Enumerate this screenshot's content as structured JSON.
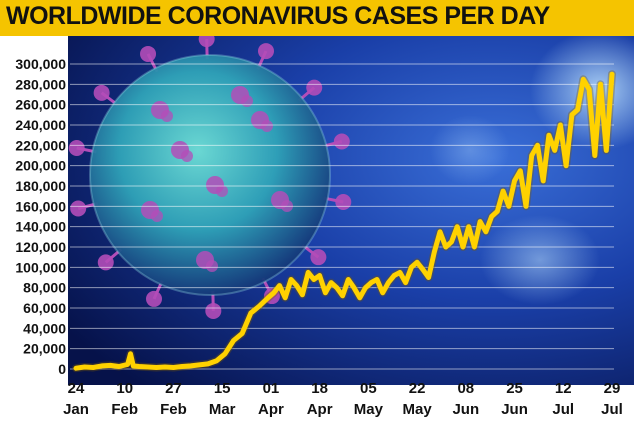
{
  "colors": {
    "title_bar": "#f5c400",
    "line": "#ffd200",
    "background_dark": "#06124a",
    "background_mid": "#1a3fa8",
    "virus_body": "#2fa3b8",
    "virus_spike": "#b34db8",
    "grid": "#ffffff"
  },
  "background_image": "coronavirus-particle-illustration",
  "chart_data": {
    "type": "line",
    "title": "WORLDWIDE CORONAVIRUS CASES PER DAY",
    "xlabel": "",
    "ylabel": "",
    "ylim": [
      0,
      300000
    ],
    "y_ticks": [
      {
        "value": 0,
        "label": "0"
      },
      {
        "value": 20000,
        "label": "20,000"
      },
      {
        "value": 40000,
        "label": "40,000"
      },
      {
        "value": 60000,
        "label": "60,000"
      },
      {
        "value": 80000,
        "label": "80,000"
      },
      {
        "value": 100000,
        "label": "100,000"
      },
      {
        "value": 120000,
        "label": "120,000"
      },
      {
        "value": 140000,
        "label": "140,000"
      },
      {
        "value": 160000,
        "label": "160,000"
      },
      {
        "value": 180000,
        "label": "180,000"
      },
      {
        "value": 200000,
        "label": "200,000"
      },
      {
        "value": 220000,
        "label": "220,000"
      },
      {
        "value": 240000,
        "label": "240,000"
      },
      {
        "value": 260000,
        "label": "260,000"
      },
      {
        "value": 280000,
        "label": "280,000"
      },
      {
        "value": 300000,
        "label": "300,000"
      }
    ],
    "x_ticks": [
      {
        "date": "2020-01-24",
        "day": "24",
        "month": "Jan"
      },
      {
        "date": "2020-02-10",
        "day": "10",
        "month": "Feb"
      },
      {
        "date": "2020-02-27",
        "day": "27",
        "month": "Feb"
      },
      {
        "date": "2020-03-15",
        "day": "15",
        "month": "Mar"
      },
      {
        "date": "2020-04-01",
        "day": "01",
        "month": "Apr"
      },
      {
        "date": "2020-04-18",
        "day": "18",
        "month": "Apr"
      },
      {
        "date": "2020-05-05",
        "day": "05",
        "month": "May"
      },
      {
        "date": "2020-05-22",
        "day": "22",
        "month": "May"
      },
      {
        "date": "2020-06-08",
        "day": "08",
        "month": "Jun"
      },
      {
        "date": "2020-06-25",
        "day": "25",
        "month": "Jun"
      },
      {
        "date": "2020-07-12",
        "day": "12",
        "month": "Jul"
      },
      {
        "date": "2020-07-29",
        "day": "29",
        "month": "Jul"
      }
    ],
    "grid": true,
    "series": [
      {
        "x": [
          "2020-01-24",
          "2020-01-27",
          "2020-01-30",
          "2020-02-02",
          "2020-02-05",
          "2020-02-08",
          "2020-02-11",
          "2020-02-12",
          "2020-02-13",
          "2020-02-15",
          "2020-02-18",
          "2020-02-21",
          "2020-02-24",
          "2020-02-27",
          "2020-03-01",
          "2020-03-04",
          "2020-03-07",
          "2020-03-10",
          "2020-03-13",
          "2020-03-16",
          "2020-03-19",
          "2020-03-22",
          "2020-03-25",
          "2020-03-28",
          "2020-03-31",
          "2020-04-02",
          "2020-04-04",
          "2020-04-06",
          "2020-04-08",
          "2020-04-10",
          "2020-04-12",
          "2020-04-14",
          "2020-04-16",
          "2020-04-18",
          "2020-04-20",
          "2020-04-22",
          "2020-04-24",
          "2020-04-26",
          "2020-04-28",
          "2020-04-30",
          "2020-05-02",
          "2020-05-04",
          "2020-05-06",
          "2020-05-08",
          "2020-05-10",
          "2020-05-12",
          "2020-05-14",
          "2020-05-16",
          "2020-05-18",
          "2020-05-20",
          "2020-05-22",
          "2020-05-24",
          "2020-05-26",
          "2020-05-28",
          "2020-05-30",
          "2020-06-01",
          "2020-06-03",
          "2020-06-05",
          "2020-06-07",
          "2020-06-09",
          "2020-06-11",
          "2020-06-13",
          "2020-06-15",
          "2020-06-17",
          "2020-06-19",
          "2020-06-21",
          "2020-06-23",
          "2020-06-25",
          "2020-06-27",
          "2020-06-29",
          "2020-07-01",
          "2020-07-03",
          "2020-07-05",
          "2020-07-07",
          "2020-07-09",
          "2020-07-11",
          "2020-07-13",
          "2020-07-15",
          "2020-07-17",
          "2020-07-19",
          "2020-07-21",
          "2020-07-23",
          "2020-07-25",
          "2020-07-27",
          "2020-07-29"
        ],
        "values": [
          800,
          2000,
          1500,
          3000,
          3500,
          2500,
          4500,
          15000,
          3000,
          2500,
          2000,
          1500,
          2000,
          1500,
          2500,
          3000,
          4000,
          5000,
          8000,
          15000,
          28000,
          35000,
          55000,
          62000,
          70000,
          75000,
          82000,
          70000,
          88000,
          82000,
          73000,
          95000,
          88000,
          92000,
          75000,
          85000,
          80000,
          72000,
          88000,
          80000,
          70000,
          80000,
          85000,
          88000,
          75000,
          85000,
          92000,
          95000,
          85000,
          100000,
          105000,
          98000,
          90000,
          115000,
          135000,
          120000,
          125000,
          140000,
          120000,
          140000,
          120000,
          145000,
          135000,
          150000,
          155000,
          175000,
          160000,
          185000,
          195000,
          160000,
          210000,
          220000,
          185000,
          230000,
          215000,
          240000,
          200000,
          250000,
          255000,
          285000,
          275000,
          210000,
          280000,
          215000,
          290000
        ]
      }
    ]
  },
  "axis_labels": {
    "y": [
      "0",
      "20,000",
      "40,000",
      "60,000",
      "80,000",
      "100,000",
      "120,000",
      "140,000",
      "160,000",
      "180,000",
      "200,000",
      "220,000",
      "240,000",
      "260,000",
      "280,000",
      "300,000"
    ],
    "x_day": [
      "24",
      "10",
      "27",
      "15",
      "01",
      "18",
      "05",
      "22",
      "08",
      "25",
      "12",
      "29"
    ],
    "x_month": [
      "Jan",
      "Feb",
      "Feb",
      "Mar",
      "Apr",
      "Apr",
      "May",
      "May",
      "Jun",
      "Jun",
      "Jul",
      "Jul"
    ]
  }
}
